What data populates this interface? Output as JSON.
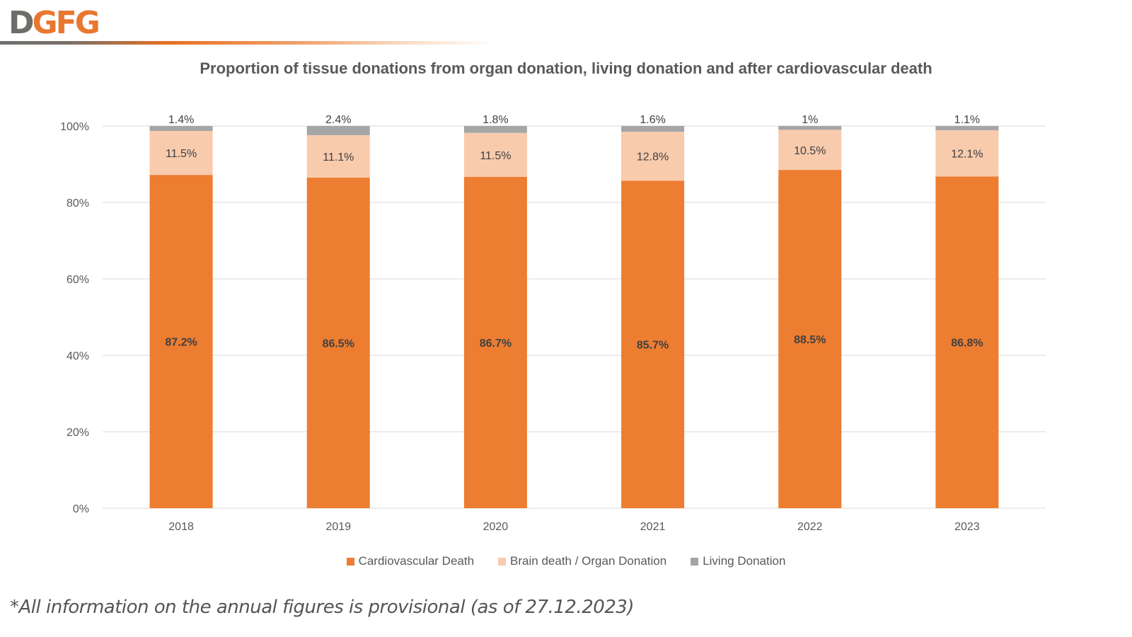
{
  "header": {
    "logo_part1": "D",
    "logo_part2": "GFG"
  },
  "colors": {
    "cardiovascular": "#ed7d31",
    "brain_death": "#f8cbad",
    "living": "#a5a5a5",
    "gridline": "#d9d9d9",
    "brand_orange": "#e9772f",
    "brand_gray": "#6d6e6a"
  },
  "chart_data": {
    "type": "bar",
    "stacked": true,
    "normalized": true,
    "title": "Proportion of tissue donations from organ donation, living donation and after cardiovascular death",
    "xlabel": "",
    "ylabel": "",
    "categories": [
      "2018",
      "2019",
      "2020",
      "2021",
      "2022",
      "2023"
    ],
    "series": [
      {
        "name": "Cardiovascular Death",
        "values": [
          87.2,
          86.5,
          86.7,
          85.7,
          88.5,
          86.8
        ],
        "labels": [
          "87.2%",
          "86.5%",
          "86.7%",
          "85.7%",
          "88.5%",
          "86.8%"
        ]
      },
      {
        "name": "Brain death / Organ Donation",
        "values": [
          11.5,
          11.1,
          11.5,
          12.8,
          10.5,
          12.1
        ],
        "labels": [
          "11.5%",
          "11.1%",
          "11.5%",
          "12.8%",
          "10.5%",
          "12.1%"
        ]
      },
      {
        "name": "Living Donation",
        "values": [
          1.4,
          2.4,
          1.8,
          1.6,
          1.0,
          1.1
        ],
        "labels": [
          "1.4%",
          "2.4%",
          "1.8%",
          "1.6%",
          "1%",
          "1.1%"
        ]
      }
    ],
    "ylim": [
      0,
      100
    ],
    "yticks": [
      0,
      20,
      40,
      60,
      80,
      100
    ],
    "ytick_labels": [
      "0%",
      "20%",
      "40%",
      "60%",
      "80%",
      "100%"
    ],
    "grid": true,
    "legend_position": "bottom"
  },
  "footnote": "*All information on the annual figures is provisional (as of 27.12.2023)"
}
